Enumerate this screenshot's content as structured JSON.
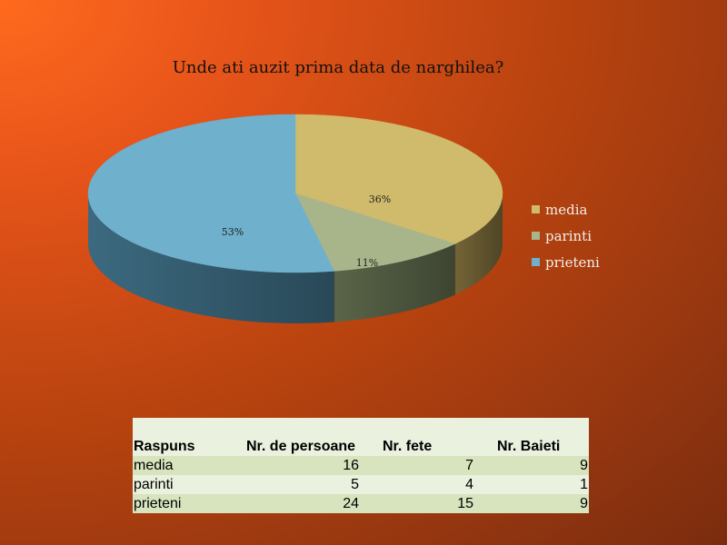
{
  "chart_data": {
    "type": "pie",
    "title": "Unde ati auzit prima data de narghilea?",
    "categories": [
      "media",
      "parinti",
      "prieteni"
    ],
    "values": [
      36,
      11,
      53
    ],
    "labels": [
      "36%",
      "11%",
      "53%"
    ],
    "colors": [
      "#d0ba6c",
      "#a8b58a",
      "#6fb0cd"
    ],
    "side_colors": [
      "#7a6a3a",
      "#5e6a4c",
      "#3f6f86"
    ],
    "legend_position": "right",
    "three_d": true
  },
  "table": {
    "headers": [
      "Raspuns",
      "Nr. de persoane",
      "Nr. fete",
      "Nr. Baieti"
    ],
    "rows": [
      {
        "raspuns": "media",
        "persoane": "16",
        "fete": "7",
        "baieti": "9"
      },
      {
        "raspuns": "parinti",
        "persoane": "5",
        "fete": "4",
        "baieti": "1"
      },
      {
        "raspuns": "prieteni",
        "persoane": "24",
        "fete": "15",
        "baieti": "9"
      }
    ]
  }
}
